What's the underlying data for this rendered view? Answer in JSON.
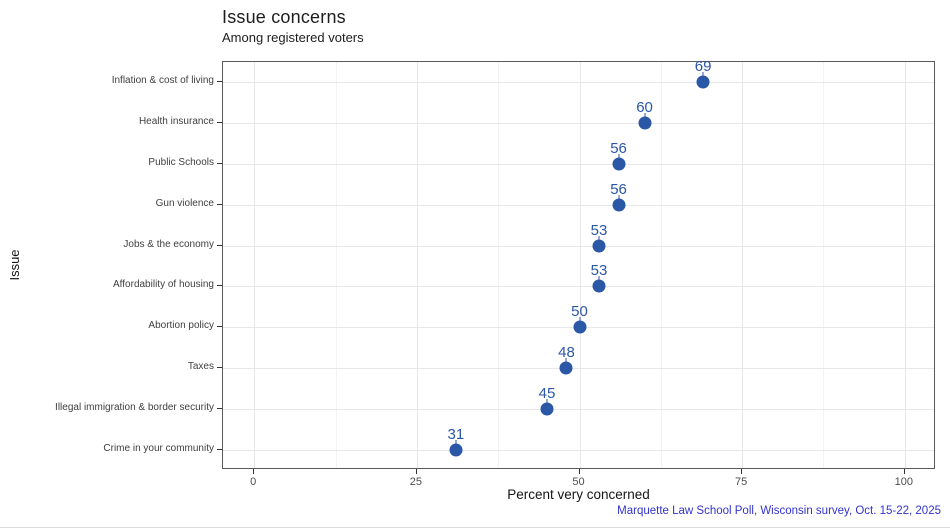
{
  "chart_data": {
    "type": "scatter",
    "variant": "horizontal-dot-plot",
    "title": "Issue concerns",
    "subtitle": "Among registered voters",
    "caption": "Marquette Law School Poll, Wisconsin survey, Oct. 15-22, 2025",
    "xlabel": "Percent very concerned",
    "ylabel": "Issue",
    "categories": [
      "Inflation & cost of living",
      "Health insurance",
      "Public Schools",
      "Gun violence",
      "Jobs & the economy",
      "Affordability of housing",
      "Abortion policy",
      "Taxes",
      "Illegal immigration & border security",
      "Crime in your community"
    ],
    "values": [
      69,
      60,
      56,
      56,
      53,
      53,
      50,
      48,
      45,
      31
    ],
    "x_ticks": [
      0,
      25,
      50,
      75,
      100
    ],
    "x_minor_ticks": [
      12.5,
      37.5,
      62.5,
      87.5
    ],
    "xlim": [
      -4.8,
      104.8
    ],
    "grid": true,
    "legend": "none",
    "colors": {
      "point": "#2b57a7",
      "value_label": "#2b57a7",
      "caption": "#3333cc",
      "grid_major": "#e8e8e8",
      "grid_minor": "#f3f3f3",
      "panel_border": "#5a5a5a",
      "tick": "#333333",
      "axis_text": "#4d4d4d",
      "category_text": "#404040"
    }
  }
}
